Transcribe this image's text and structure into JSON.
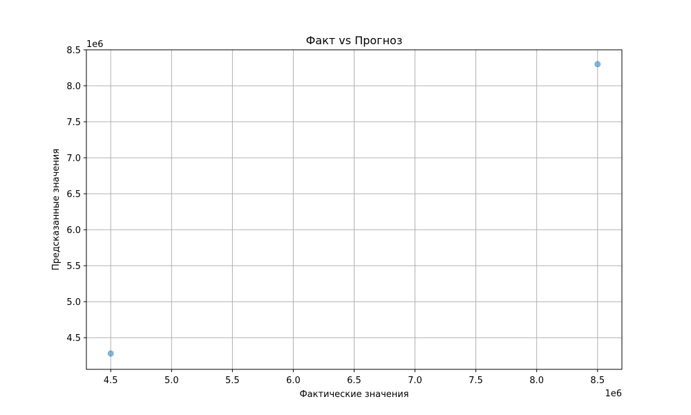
{
  "chart_data": {
    "type": "scatter",
    "title": "Факт vs Прогноз",
    "xlabel": "Фактические значения",
    "ylabel": "Предсказанные значения",
    "x_offset_label": "1e6",
    "y_offset_label": "1e6",
    "xlim": [
      4.3,
      8.7
    ],
    "ylim": [
      4.06,
      8.5
    ],
    "x_ticks": [
      4.5,
      5.0,
      5.5,
      6.0,
      6.5,
      7.0,
      7.5,
      8.0,
      8.5
    ],
    "x_tick_labels": [
      "4.5",
      "5.0",
      "5.5",
      "6.0",
      "6.5",
      "7.0",
      "7.5",
      "8.0",
      "8.5"
    ],
    "y_ticks": [
      4.5,
      5.0,
      5.5,
      6.0,
      6.5,
      7.0,
      7.5,
      8.0,
      8.5
    ],
    "y_tick_labels": [
      "4.5",
      "5.0",
      "5.5",
      "6.0",
      "6.5",
      "7.0",
      "7.5",
      "8.0",
      "8.5"
    ],
    "grid": true,
    "series": [
      {
        "x": [
          4.5,
          8.5
        ],
        "y": [
          4.28,
          8.3
        ],
        "color": "#1f77b4",
        "alpha": 0.5
      }
    ]
  }
}
